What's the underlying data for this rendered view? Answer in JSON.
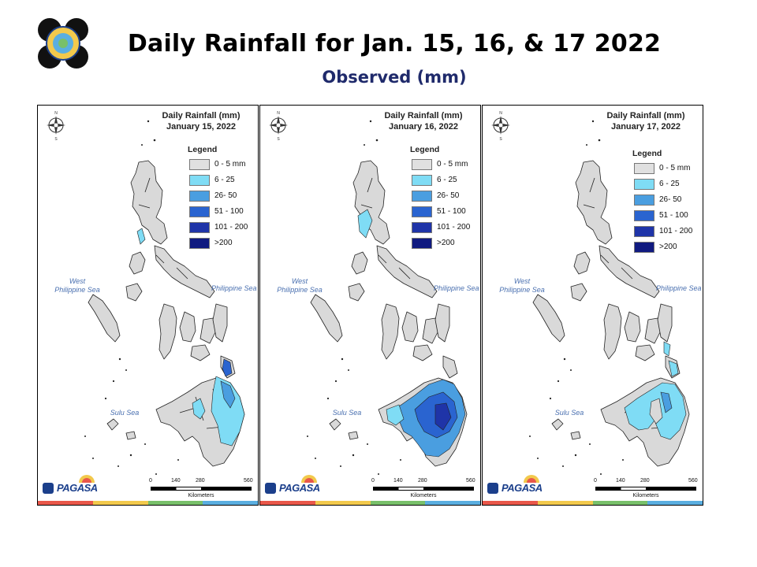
{
  "header": {
    "title": "Daily Rainfall for Jan. 15, 16, & 17 2022",
    "subtitle": "Observed (mm)"
  },
  "legend": {
    "title": "Legend",
    "items": [
      {
        "label": "0 - 5 mm",
        "color": "#e0e0e0"
      },
      {
        "label": "6 - 25",
        "color": "#7fdcf5"
      },
      {
        "label": "26- 50",
        "color": "#4a9ee0"
      },
      {
        "label": "51 - 100",
        "color": "#2a64d0"
      },
      {
        "label": "101 - 200",
        "color": "#1f34a8"
      },
      {
        "label": ">200",
        "color": "#101a80"
      }
    ]
  },
  "seas": {
    "west": "West Philippine Sea",
    "philippine": "Philippine Sea",
    "sulu": "Sulu Sea"
  },
  "scale": {
    "ticks": [
      "0",
      "140",
      "280",
      "560"
    ],
    "unit": "Kilometers"
  },
  "brand": "PAGASA",
  "panels": [
    {
      "title": "Daily Rainfall (mm)",
      "date": "January 15, 2022"
    },
    {
      "title": "Daily Rainfall (mm)",
      "date": "January 16, 2022"
    },
    {
      "title": "Daily Rainfall (mm)",
      "date": "January 17, 2022"
    }
  ],
  "stripe_colors": [
    "#e9574a",
    "#f2c94c",
    "#78c06a",
    "#5aaee0"
  ],
  "icons": [
    "pagasa-seal-icon",
    "compass-rose-icon",
    "pagasa-logo-icon"
  ]
}
